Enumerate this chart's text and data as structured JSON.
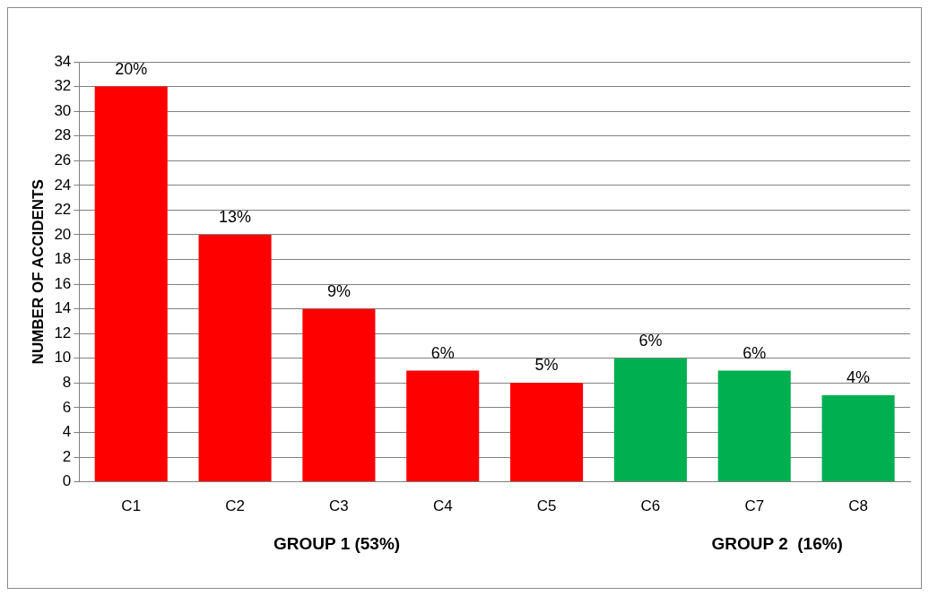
{
  "chart_data": {
    "type": "bar",
    "ylabel": "NUMBER OF ACCIDENTS",
    "categories": [
      "C1",
      "C2",
      "C3",
      "C4",
      "C5",
      "C6",
      "C7",
      "C8"
    ],
    "values": [
      32,
      20,
      14,
      9,
      8,
      10,
      9,
      7
    ],
    "colors": [
      "#ff0000",
      "#ff0000",
      "#ff0000",
      "#ff0000",
      "#ff0000",
      "#00b050",
      "#00b050",
      "#00b050"
    ],
    "ylim": [
      0,
      34
    ],
    "yticks": [
      0,
      2,
      4,
      6,
      8,
      10,
      12,
      14,
      16,
      18,
      20,
      22,
      24,
      26,
      28,
      30,
      32,
      34
    ],
    "grid": "y",
    "legend": false,
    "annotations": [
      "GROUP 1 (53%)",
      "GROUP 2  (16%)",
      {
        "text": "20%",
        "x": "C1",
        "y": 32
      },
      {
        "text": "13%",
        "x": "C2",
        "y": 20
      },
      {
        "text": "9%",
        "x": "C3",
        "y": 14
      },
      {
        "text": "6%",
        "x": "C4",
        "y": 9
      },
      {
        "text": "5%",
        "x": "C5",
        "y": 8
      },
      {
        "text": "6%",
        "x": "C6",
        "y": 10
      },
      {
        "text": "6%",
        "x": "C7",
        "y": 9
      },
      {
        "text": "4%",
        "x": "C8",
        "y": 7
      }
    ]
  }
}
